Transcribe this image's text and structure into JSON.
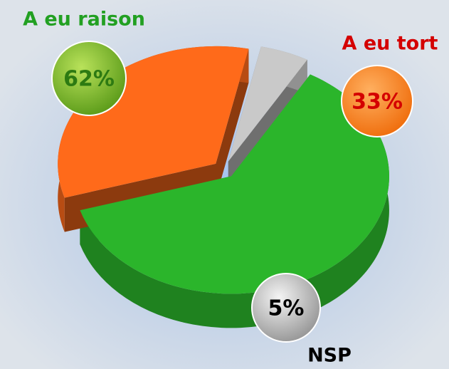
{
  "chart_data": {
    "type": "pie",
    "categories": [
      "A eu raison",
      "A eu tort",
      "NSP"
    ],
    "values": [
      62,
      33,
      5
    ],
    "value_labels": [
      "62%",
      "33%",
      "5%"
    ],
    "colors": [
      "#2bb52b",
      "#ff6a1a",
      "#c9c9c9"
    ]
  }
}
